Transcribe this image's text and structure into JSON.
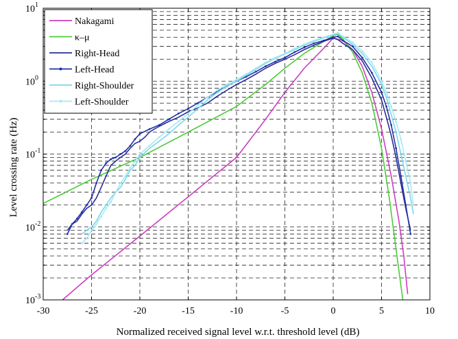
{
  "chart_data": {
    "type": "line",
    "xlabel": "Normalized received signal level w.r.t. threshold level (dB)",
    "ylabel": "Level crossing rate (Hz)",
    "xlim": [
      -30,
      10
    ],
    "ylim": [
      0.001,
      10
    ],
    "yscale": "log",
    "grid": true,
    "grid_style": "dashed",
    "legend_position": "top-left",
    "x_ticks": [
      "-30",
      "-25",
      "-20",
      "-15",
      "-10",
      "-5",
      "0",
      "5",
      "10"
    ],
    "y_ticks": [
      {
        "base": "10",
        "exp": "-3"
      },
      {
        "base": "10",
        "exp": "-2"
      },
      {
        "base": "10",
        "exp": "-1"
      },
      {
        "base": "10",
        "exp": "0"
      },
      {
        "base": "10",
        "exp": "1"
      }
    ],
    "series": [
      {
        "name": "Nakagami",
        "color": "#cc3dc0",
        "marker": "none",
        "points": [
          [
            -28,
            0.001
          ],
          [
            -25,
            0.0022
          ],
          [
            -20,
            0.0075
          ],
          [
            -15,
            0.026
          ],
          [
            -10,
            0.09
          ],
          [
            -7,
            0.3
          ],
          [
            -5,
            0.7
          ],
          [
            -3,
            1.5
          ],
          [
            -1,
            2.8
          ],
          [
            0,
            3.9
          ],
          [
            1,
            3.6
          ],
          [
            2,
            2.7
          ],
          [
            3,
            1.6
          ],
          [
            4,
            0.7
          ],
          [
            5,
            0.22
          ],
          [
            6,
            0.05
          ],
          [
            6.8,
            0.012
          ],
          [
            7.3,
            0.004
          ],
          [
            7.7,
            0.0012
          ]
        ]
      },
      {
        "name": "κ–μ",
        "color": "#4ccc38",
        "marker": "none",
        "points": [
          [
            -30,
            0.021
          ],
          [
            -25,
            0.045
          ],
          [
            -20,
            0.09
          ],
          [
            -15,
            0.2
          ],
          [
            -10,
            0.45
          ],
          [
            -7,
            0.9
          ],
          [
            -5,
            1.5
          ],
          [
            -3,
            2.4
          ],
          [
            -1,
            3.5
          ],
          [
            0,
            4.2
          ],
          [
            0.5,
            4.4
          ],
          [
            1,
            3.8
          ],
          [
            2,
            2.5
          ],
          [
            3,
            1.3
          ],
          [
            4,
            0.5
          ],
          [
            5,
            0.12
          ],
          [
            5.8,
            0.025
          ],
          [
            6.5,
            0.005
          ],
          [
            7.2,
            0.001
          ]
        ]
      },
      {
        "name": "Right-Head",
        "color": "#2a2e94",
        "marker": "none",
        "points": [
          [
            -27.5,
            0.009
          ],
          [
            -27,
            0.011
          ],
          [
            -26.5,
            0.012
          ],
          [
            -26,
            0.015
          ],
          [
            -25.5,
            0.018
          ],
          [
            -25,
            0.02
          ],
          [
            -24.5,
            0.025
          ],
          [
            -24,
            0.035
          ],
          [
            -23.5,
            0.05
          ],
          [
            -23,
            0.07
          ],
          [
            -22.5,
            0.08
          ],
          [
            -22,
            0.09
          ],
          [
            -21.5,
            0.1
          ],
          [
            -21,
            0.12
          ],
          [
            -20.5,
            0.14
          ],
          [
            -20,
            0.15
          ],
          [
            -19.5,
            0.17
          ],
          [
            -19,
            0.2
          ],
          [
            -18.5,
            0.22
          ],
          [
            -18,
            0.24
          ],
          [
            -17,
            0.28
          ],
          [
            -16,
            0.32
          ],
          [
            -15,
            0.38
          ],
          [
            -14,
            0.43
          ],
          [
            -13,
            0.5
          ],
          [
            -12,
            0.62
          ],
          [
            -11,
            0.75
          ],
          [
            -10,
            0.9
          ],
          [
            -9,
            1.05
          ],
          [
            -8,
            1.25
          ],
          [
            -7,
            1.5
          ],
          [
            -6,
            1.75
          ],
          [
            -5,
            2.0
          ],
          [
            -4,
            2.3
          ],
          [
            -3,
            2.7
          ],
          [
            -2,
            3.1
          ],
          [
            -1,
            3.5
          ],
          [
            0,
            3.9
          ],
          [
            0.5,
            3.7
          ],
          [
            1,
            3.3
          ],
          [
            2,
            2.7
          ],
          [
            3,
            1.9
          ],
          [
            4,
            1.1
          ],
          [
            5,
            0.55
          ],
          [
            5.5,
            0.32
          ],
          [
            6,
            0.18
          ],
          [
            6.5,
            0.09
          ],
          [
            7,
            0.04
          ],
          [
            7.5,
            0.018
          ],
          [
            8,
            0.009
          ]
        ]
      },
      {
        "name": "Left-Head",
        "color": "#2030a8",
        "marker": "dot",
        "points": [
          [
            -27.5,
            0.008
          ],
          [
            -27,
            0.011
          ],
          [
            -26.5,
            0.013
          ],
          [
            -26,
            0.016
          ],
          [
            -25.5,
            0.02
          ],
          [
            -25,
            0.025
          ],
          [
            -24.5,
            0.04
          ],
          [
            -24,
            0.06
          ],
          [
            -23.5,
            0.075
          ],
          [
            -23,
            0.085
          ],
          [
            -22.5,
            0.09
          ],
          [
            -22,
            0.1
          ],
          [
            -21.5,
            0.11
          ],
          [
            -21,
            0.13
          ],
          [
            -20.5,
            0.16
          ],
          [
            -20,
            0.19
          ],
          [
            -19,
            0.22
          ],
          [
            -18,
            0.25
          ],
          [
            -17,
            0.3
          ],
          [
            -16,
            0.36
          ],
          [
            -15,
            0.42
          ],
          [
            -14,
            0.5
          ],
          [
            -13,
            0.6
          ],
          [
            -12,
            0.72
          ],
          [
            -11,
            0.85
          ],
          [
            -10,
            1.0
          ],
          [
            -9,
            1.15
          ],
          [
            -8,
            1.35
          ],
          [
            -7,
            1.6
          ],
          [
            -6,
            1.85
          ],
          [
            -5,
            2.1
          ],
          [
            -4,
            2.5
          ],
          [
            -3,
            2.9
          ],
          [
            -2,
            3.3
          ],
          [
            -1,
            3.6
          ],
          [
            0,
            4.0
          ],
          [
            0.5,
            4.1
          ],
          [
            1,
            3.6
          ],
          [
            2,
            3.0
          ],
          [
            3,
            2.1
          ],
          [
            4,
            1.3
          ],
          [
            5,
            0.7
          ],
          [
            5.5,
            0.45
          ],
          [
            6,
            0.25
          ],
          [
            6.5,
            0.12
          ],
          [
            7,
            0.05
          ],
          [
            7.5,
            0.02
          ],
          [
            8,
            0.008
          ]
        ]
      },
      {
        "name": "Right-Shoulder",
        "color": "#7ad8ea",
        "marker": "none",
        "points": [
          [
            -26,
            0.008
          ],
          [
            -25.5,
            0.009
          ],
          [
            -25,
            0.01
          ],
          [
            -24.5,
            0.012
          ],
          [
            -24,
            0.016
          ],
          [
            -23.5,
            0.02
          ],
          [
            -23,
            0.025
          ],
          [
            -22.5,
            0.03
          ],
          [
            -22,
            0.035
          ],
          [
            -21.5,
            0.045
          ],
          [
            -21,
            0.06
          ],
          [
            -20.5,
            0.07
          ],
          [
            -20,
            0.09
          ],
          [
            -19,
            0.12
          ],
          [
            -18,
            0.15
          ],
          [
            -17,
            0.19
          ],
          [
            -16,
            0.25
          ],
          [
            -15,
            0.32
          ],
          [
            -14,
            0.42
          ],
          [
            -13,
            0.55
          ],
          [
            -12,
            0.7
          ],
          [
            -11,
            0.85
          ],
          [
            -10,
            1.0
          ],
          [
            -9,
            1.2
          ],
          [
            -8,
            1.45
          ],
          [
            -7,
            1.75
          ],
          [
            -6,
            2.05
          ],
          [
            -5,
            2.35
          ],
          [
            -4,
            2.7
          ],
          [
            -3,
            3.1
          ],
          [
            -2,
            3.5
          ],
          [
            -1,
            3.9
          ],
          [
            0,
            4.3
          ],
          [
            0.5,
            4.5
          ],
          [
            1,
            4.0
          ],
          [
            2,
            3.2
          ],
          [
            3,
            2.4
          ],
          [
            4,
            1.6
          ],
          [
            5,
            0.9
          ],
          [
            5.5,
            0.6
          ],
          [
            6,
            0.35
          ],
          [
            6.5,
            0.2
          ],
          [
            7,
            0.1
          ],
          [
            7.5,
            0.05
          ],
          [
            8,
            0.025
          ],
          [
            8.3,
            0.015
          ]
        ]
      },
      {
        "name": "Left-Shoulder",
        "color": "#a8e8f4",
        "marker": "dot",
        "points": [
          [
            -26,
            0.006
          ],
          [
            -25.5,
            0.007
          ],
          [
            -25,
            0.009
          ],
          [
            -24.5,
            0.011
          ],
          [
            -24,
            0.014
          ],
          [
            -23.5,
            0.018
          ],
          [
            -23,
            0.022
          ],
          [
            -22.5,
            0.03
          ],
          [
            -22,
            0.04
          ],
          [
            -21.5,
            0.05
          ],
          [
            -21,
            0.065
          ],
          [
            -20.5,
            0.08
          ],
          [
            -20,
            0.1
          ],
          [
            -19,
            0.13
          ],
          [
            -18,
            0.17
          ],
          [
            -17,
            0.22
          ],
          [
            -16,
            0.28
          ],
          [
            -15,
            0.36
          ],
          [
            -14,
            0.47
          ],
          [
            -13,
            0.6
          ],
          [
            -12,
            0.75
          ],
          [
            -11,
            0.9
          ],
          [
            -10,
            1.05
          ],
          [
            -9,
            1.25
          ],
          [
            -8,
            1.5
          ],
          [
            -7,
            1.8
          ],
          [
            -6,
            2.1
          ],
          [
            -5,
            2.4
          ],
          [
            -4,
            2.8
          ],
          [
            -3,
            3.2
          ],
          [
            -2,
            3.6
          ],
          [
            -1,
            4.0
          ],
          [
            0,
            4.4
          ],
          [
            0.5,
            4.6
          ],
          [
            1,
            4.1
          ],
          [
            2,
            3.4
          ],
          [
            3,
            2.6
          ],
          [
            4,
            1.8
          ],
          [
            5,
            1.0
          ],
          [
            5.5,
            0.7
          ],
          [
            6,
            0.45
          ],
          [
            6.5,
            0.28
          ],
          [
            7,
            0.16
          ],
          [
            7.5,
            0.08
          ],
          [
            8,
            0.04
          ],
          [
            8.3,
            0.02
          ]
        ]
      }
    ]
  }
}
